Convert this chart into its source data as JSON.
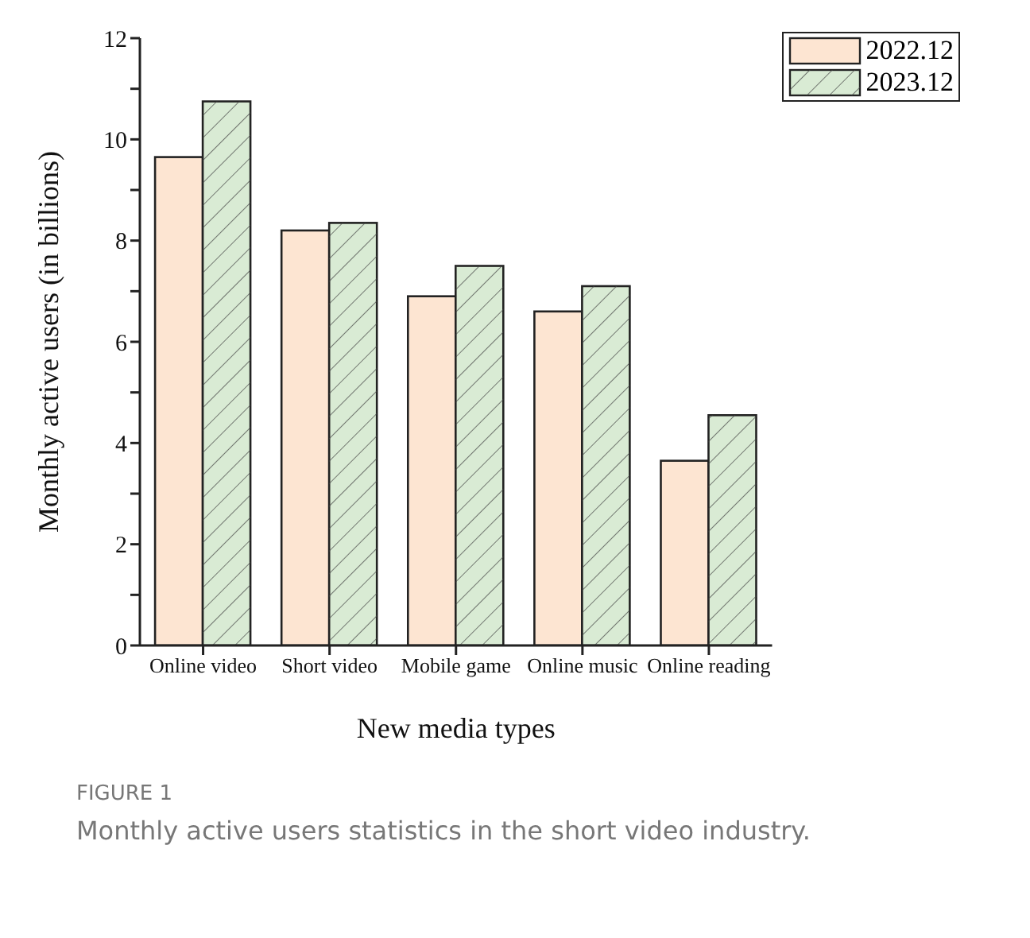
{
  "chart_data": {
    "type": "bar",
    "categories": [
      "Online video",
      "Short video",
      "Mobile game",
      "Online music",
      "Online reading"
    ],
    "series": [
      {
        "name": "2022.12",
        "color": "#fde5d2",
        "values": [
          9.65,
          8.2,
          6.9,
          6.6,
          3.65
        ]
      },
      {
        "name": "2023.12",
        "color": "#d9ebd4",
        "values": [
          10.75,
          8.35,
          7.5,
          7.1,
          4.55
        ]
      }
    ],
    "xlabel": "New media types",
    "ylabel": "Monthly active users (in billions)",
    "ylim": [
      0,
      12
    ],
    "yticks": [
      0,
      {
        "value": 1,
        "label": null
      },
      2,
      {
        "value": 3,
        "label": null
      },
      4,
      {
        "value": 5,
        "label": null
      },
      6,
      {
        "value": 7,
        "label": null
      },
      8,
      {
        "value": 9,
        "label": null
      },
      10,
      {
        "value": 11,
        "label": null
      },
      12
    ],
    "grid": false,
    "legend": "top right",
    "annotations": [
      "FIGURE 1",
      "Monthly active users statistics in the short video industry."
    ]
  }
}
